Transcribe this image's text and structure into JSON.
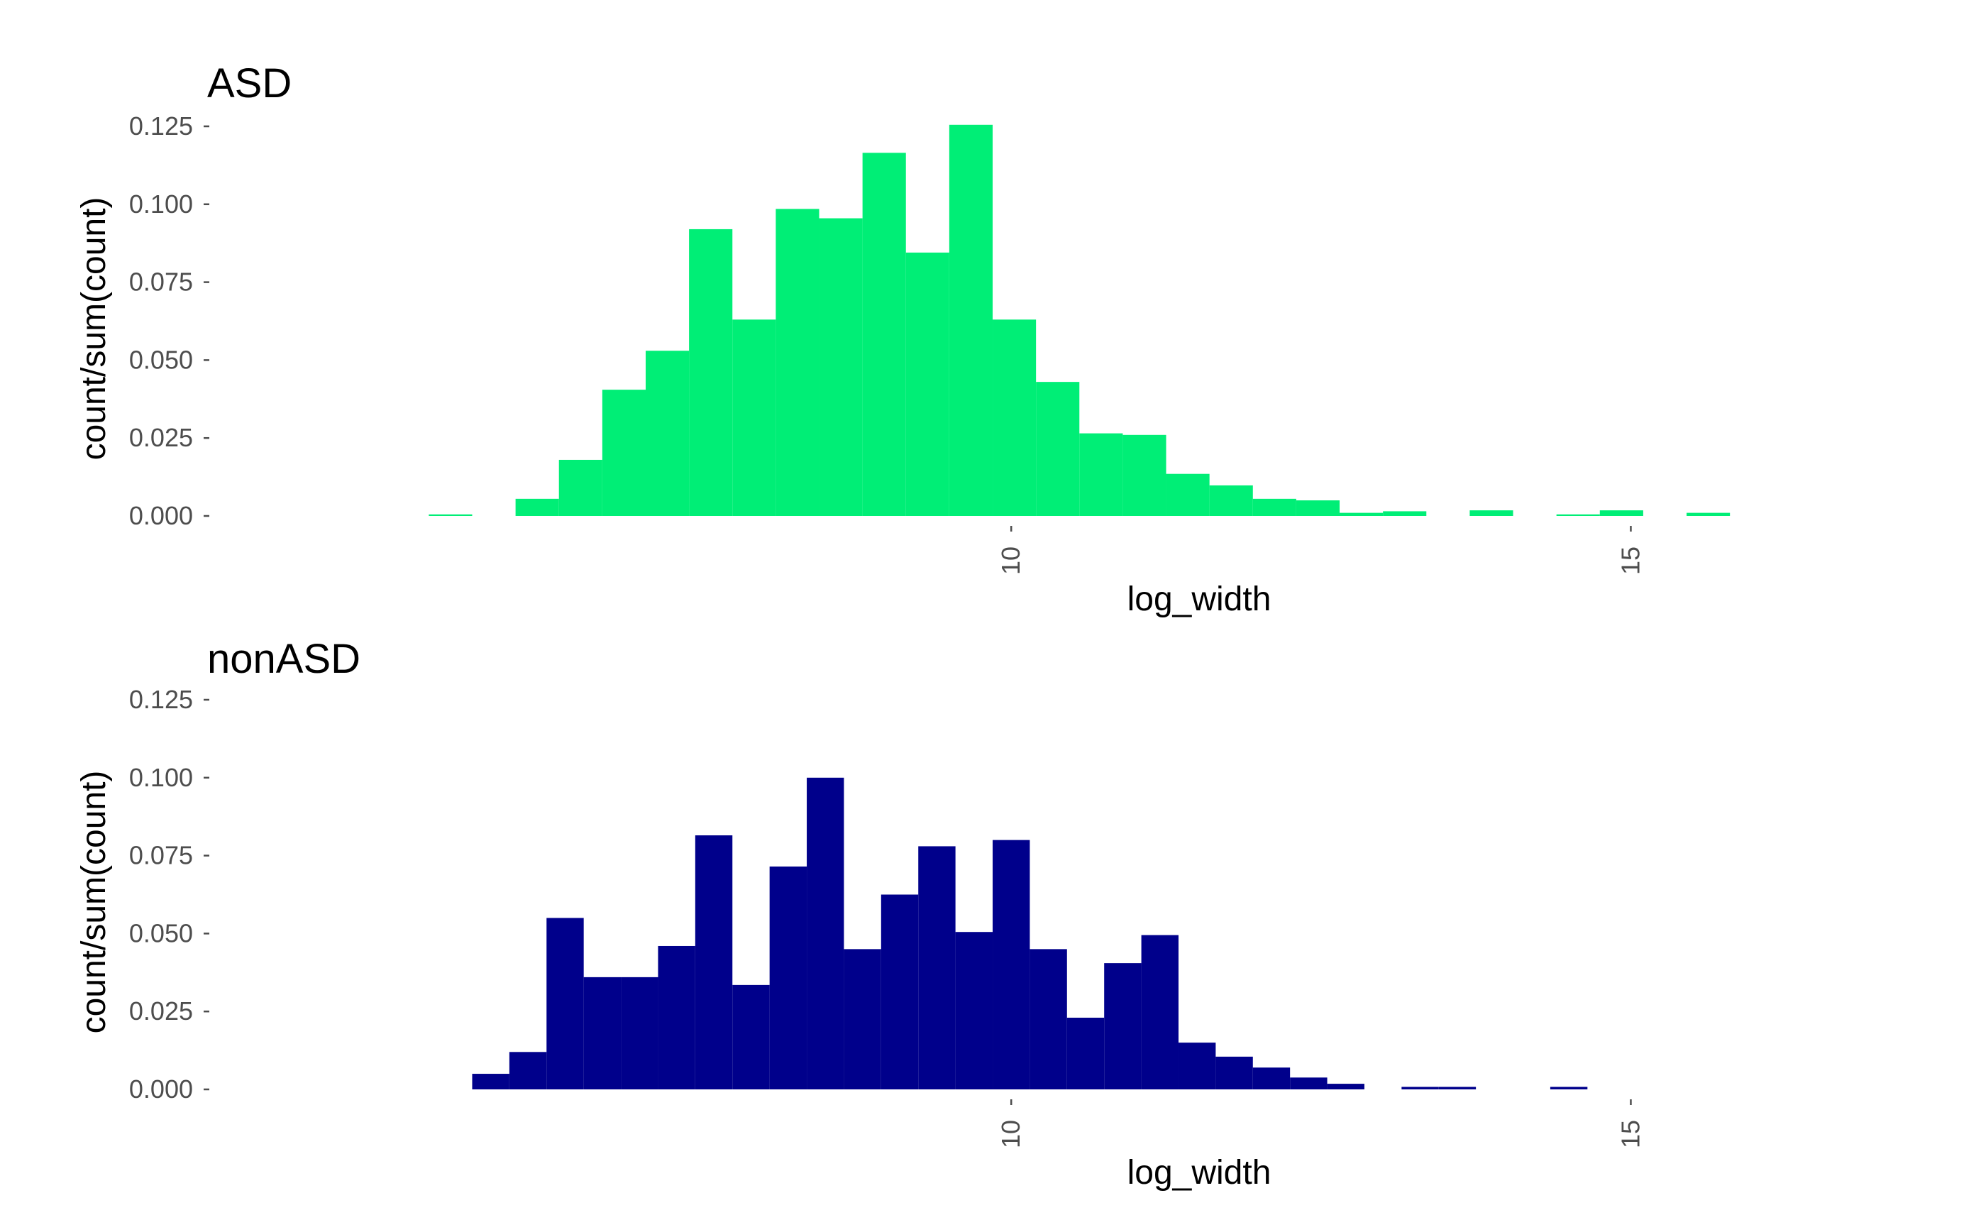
{
  "chart_data": [
    {
      "type": "bar",
      "title": "ASD",
      "xlabel": "log_width",
      "ylabel": "count/sum(count)",
      "ylim": [
        0,
        0.125
      ],
      "yticks": [
        "0.000",
        "0.025",
        "0.050",
        "0.075",
        "0.100",
        "0.125"
      ],
      "xticks": [
        "10",
        "15"
      ],
      "xlim": [
        3.5,
        17.7
      ],
      "color": "#00ee76",
      "bins": [
        {
          "x0": 5.3,
          "x1": 5.65,
          "value": 0.0005
        },
        {
          "x0": 6.0,
          "x1": 6.35,
          "value": 0.0055
        },
        {
          "x0": 6.35,
          "x1": 6.7,
          "value": 0.018
        },
        {
          "x0": 6.7,
          "x1": 7.05,
          "value": 0.0405
        },
        {
          "x0": 7.05,
          "x1": 7.4,
          "value": 0.053
        },
        {
          "x0": 7.4,
          "x1": 7.75,
          "value": 0.092
        },
        {
          "x0": 7.75,
          "x1": 8.1,
          "value": 0.063
        },
        {
          "x0": 8.1,
          "x1": 8.45,
          "value": 0.0985
        },
        {
          "x0": 8.45,
          "x1": 8.8,
          "value": 0.0955
        },
        {
          "x0": 8.8,
          "x1": 9.15,
          "value": 0.1165
        },
        {
          "x0": 9.15,
          "x1": 9.5,
          "value": 0.0845
        },
        {
          "x0": 9.5,
          "x1": 9.85,
          "value": 0.1255
        },
        {
          "x0": 9.85,
          "x1": 10.2,
          "value": 0.063
        },
        {
          "x0": 10.2,
          "x1": 10.55,
          "value": 0.043
        },
        {
          "x0": 10.55,
          "x1": 10.9,
          "value": 0.0265
        },
        {
          "x0": 10.9,
          "x1": 11.25,
          "value": 0.026
        },
        {
          "x0": 11.25,
          "x1": 11.6,
          "value": 0.0135
        },
        {
          "x0": 11.6,
          "x1": 11.95,
          "value": 0.0098
        },
        {
          "x0": 11.95,
          "x1": 12.3,
          "value": 0.0055
        },
        {
          "x0": 12.3,
          "x1": 12.65,
          "value": 0.005
        },
        {
          "x0": 12.65,
          "x1": 13.0,
          "value": 0.001
        },
        {
          "x0": 13.0,
          "x1": 13.35,
          "value": 0.0015
        },
        {
          "x0": 13.7,
          "x1": 14.05,
          "value": 0.0018
        },
        {
          "x0": 14.4,
          "x1": 14.75,
          "value": 0.0005
        },
        {
          "x0": 14.75,
          "x1": 15.1,
          "value": 0.0018
        },
        {
          "x0": 15.45,
          "x1": 15.8,
          "value": 0.001
        }
      ]
    },
    {
      "type": "bar",
      "title": "nonASD",
      "xlabel": "log_width",
      "ylabel": "count/sum(count)",
      "ylim": [
        0,
        0.125
      ],
      "yticks": [
        "0.000",
        "0.025",
        "0.050",
        "0.075",
        "0.100",
        "0.125"
      ],
      "xticks": [
        "10",
        "15"
      ],
      "xlim": [
        3.5,
        17.7
      ],
      "color": "#00008b",
      "bins": [
        {
          "x0": 5.65,
          "x1": 5.95,
          "value": 0.005
        },
        {
          "x0": 5.95,
          "x1": 6.25,
          "value": 0.012
        },
        {
          "x0": 6.25,
          "x1": 6.55,
          "value": 0.055
        },
        {
          "x0": 6.55,
          "x1": 6.85,
          "value": 0.036
        },
        {
          "x0": 6.85,
          "x1": 7.15,
          "value": 0.036
        },
        {
          "x0": 7.15,
          "x1": 7.45,
          "value": 0.046
        },
        {
          "x0": 7.45,
          "x1": 7.75,
          "value": 0.0815
        },
        {
          "x0": 7.75,
          "x1": 8.05,
          "value": 0.0335
        },
        {
          "x0": 8.05,
          "x1": 8.35,
          "value": 0.0715
        },
        {
          "x0": 8.35,
          "x1": 8.65,
          "value": 0.1
        },
        {
          "x0": 8.65,
          "x1": 8.95,
          "value": 0.045
        },
        {
          "x0": 8.95,
          "x1": 9.25,
          "value": 0.0625
        },
        {
          "x0": 9.25,
          "x1": 9.55,
          "value": 0.078
        },
        {
          "x0": 9.55,
          "x1": 9.85,
          "value": 0.0505
        },
        {
          "x0": 9.85,
          "x1": 10.15,
          "value": 0.08
        },
        {
          "x0": 10.15,
          "x1": 10.45,
          "value": 0.045
        },
        {
          "x0": 10.45,
          "x1": 10.75,
          "value": 0.023
        },
        {
          "x0": 10.75,
          "x1": 11.05,
          "value": 0.0405
        },
        {
          "x0": 11.05,
          "x1": 11.35,
          "value": 0.0495
        },
        {
          "x0": 11.35,
          "x1": 11.65,
          "value": 0.015
        },
        {
          "x0": 11.65,
          "x1": 11.95,
          "value": 0.0105
        },
        {
          "x0": 11.95,
          "x1": 12.25,
          "value": 0.007
        },
        {
          "x0": 12.25,
          "x1": 12.55,
          "value": 0.0038
        },
        {
          "x0": 12.55,
          "x1": 12.85,
          "value": 0.0018
        },
        {
          "x0": 13.15,
          "x1": 13.45,
          "value": 0.0008
        },
        {
          "x0": 13.45,
          "x1": 13.75,
          "value": 0.0008
        },
        {
          "x0": 14.35,
          "x1": 14.65,
          "value": 0.0008
        }
      ]
    }
  ]
}
